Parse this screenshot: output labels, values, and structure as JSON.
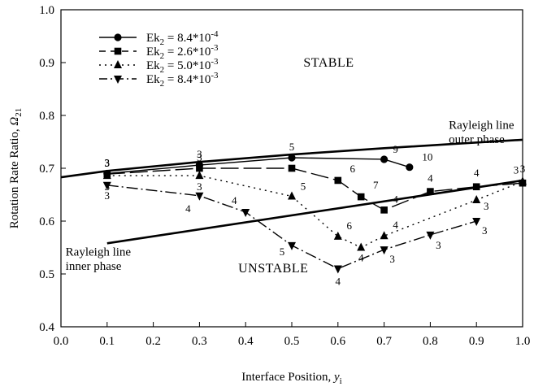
{
  "chart_data": {
    "type": "line",
    "xlabel": "Interface Position,",
    "xlabel_symbol": "y",
    "xlabel_sub": "i",
    "ylabel": "Rotation Rate Ratio,",
    "ylabel_symbol": "Ω",
    "ylabel_sub": "21",
    "xlim": [
      0.0,
      1.0
    ],
    "ylim": [
      0.4,
      1.0
    ],
    "x_ticks": [
      "0.0",
      "0.1",
      "0.2",
      "0.3",
      "0.4",
      "0.5",
      "0.6",
      "0.7",
      "0.8",
      "0.9",
      "1.0"
    ],
    "y_ticks": [
      "0.4",
      "0.5",
      "0.6",
      "0.7",
      "0.8",
      "0.9",
      "1.0"
    ],
    "grid": false,
    "legend_position": "top-left",
    "region_labels": [
      {
        "text": "STABLE",
        "x": 0.58,
        "y": 0.892
      },
      {
        "text": "UNSTABLE",
        "x": 0.46,
        "y": 0.503
      }
    ],
    "annotations": [
      {
        "text": "Rayleigh line",
        "x": 0.84,
        "y": 0.775
      },
      {
        "text": "outer phase",
        "x": 0.84,
        "y": 0.748
      },
      {
        "text": "Rayleigh line",
        "x": 0.01,
        "y": 0.535
      },
      {
        "text": "inner phase",
        "x": 0.01,
        "y": 0.508
      }
    ],
    "rayleigh_lines": [
      {
        "name": "outer",
        "x": [
          0.0,
          0.1,
          0.3,
          0.5,
          0.7,
          0.85,
          1.0
        ],
        "y": [
          0.683,
          0.695,
          0.712,
          0.726,
          0.738,
          0.746,
          0.754
        ]
      },
      {
        "name": "inner",
        "x": [
          0.1,
          1.0
        ],
        "y": [
          0.558,
          0.677
        ]
      }
    ],
    "series": [
      {
        "name_base": "Ek",
        "name_sub": "2",
        "name_value": " = 8.4*10",
        "name_exp": "-4",
        "marker": "circle",
        "dash": "",
        "x": [
          0.1,
          0.3,
          0.5,
          0.7,
          0.755
        ],
        "y": [
          0.69,
          0.706,
          0.72,
          0.717,
          0.702
        ],
        "labels": [
          "3",
          "3",
          "5",
          "9",
          "10"
        ]
      },
      {
        "name_base": "Ek",
        "name_sub": "2",
        "name_value": " = 2.6*10",
        "name_exp": "-3",
        "marker": "square",
        "dash": "22,6",
        "x": [
          0.1,
          0.3,
          0.5,
          0.6,
          0.65,
          0.7,
          0.8,
          0.9,
          1.0
        ],
        "y": [
          0.689,
          0.7,
          0.7,
          0.677,
          0.646,
          0.621,
          0.656,
          0.665,
          0.672
        ],
        "labels": [
          "3",
          "3",
          "5",
          "6",
          "7",
          "4",
          "4",
          "4",
          "3"
        ]
      },
      {
        "name_base": "Ek",
        "name_sub": "2",
        "name_value": " = 5.0*10",
        "name_exp": "-3",
        "marker": "triangle-up",
        "dash": "2,5",
        "x": [
          0.1,
          0.3,
          0.5,
          0.6,
          0.65,
          0.7,
          0.9,
          1.0
        ],
        "y": [
          0.686,
          0.686,
          0.647,
          0.571,
          0.55,
          0.572,
          0.64,
          0.675
        ],
        "labels": [
          "3",
          "3",
          "5",
          "6",
          "4",
          "4",
          "3",
          "3"
        ]
      },
      {
        "name_base": "Ek",
        "name_sub": "2",
        "name_value": " = 8.4*10",
        "name_exp": "-3",
        "marker": "triangle-down",
        "dash": "14,4,2,4",
        "x": [
          0.1,
          0.3,
          0.4,
          0.5,
          0.6,
          0.7,
          0.8,
          0.9
        ],
        "y": [
          0.668,
          0.648,
          0.617,
          0.554,
          0.51,
          0.546,
          0.574,
          0.6
        ],
        "labels": [
          "3",
          "4",
          "4",
          "5",
          "4",
          "3",
          "3",
          "3"
        ]
      }
    ]
  }
}
